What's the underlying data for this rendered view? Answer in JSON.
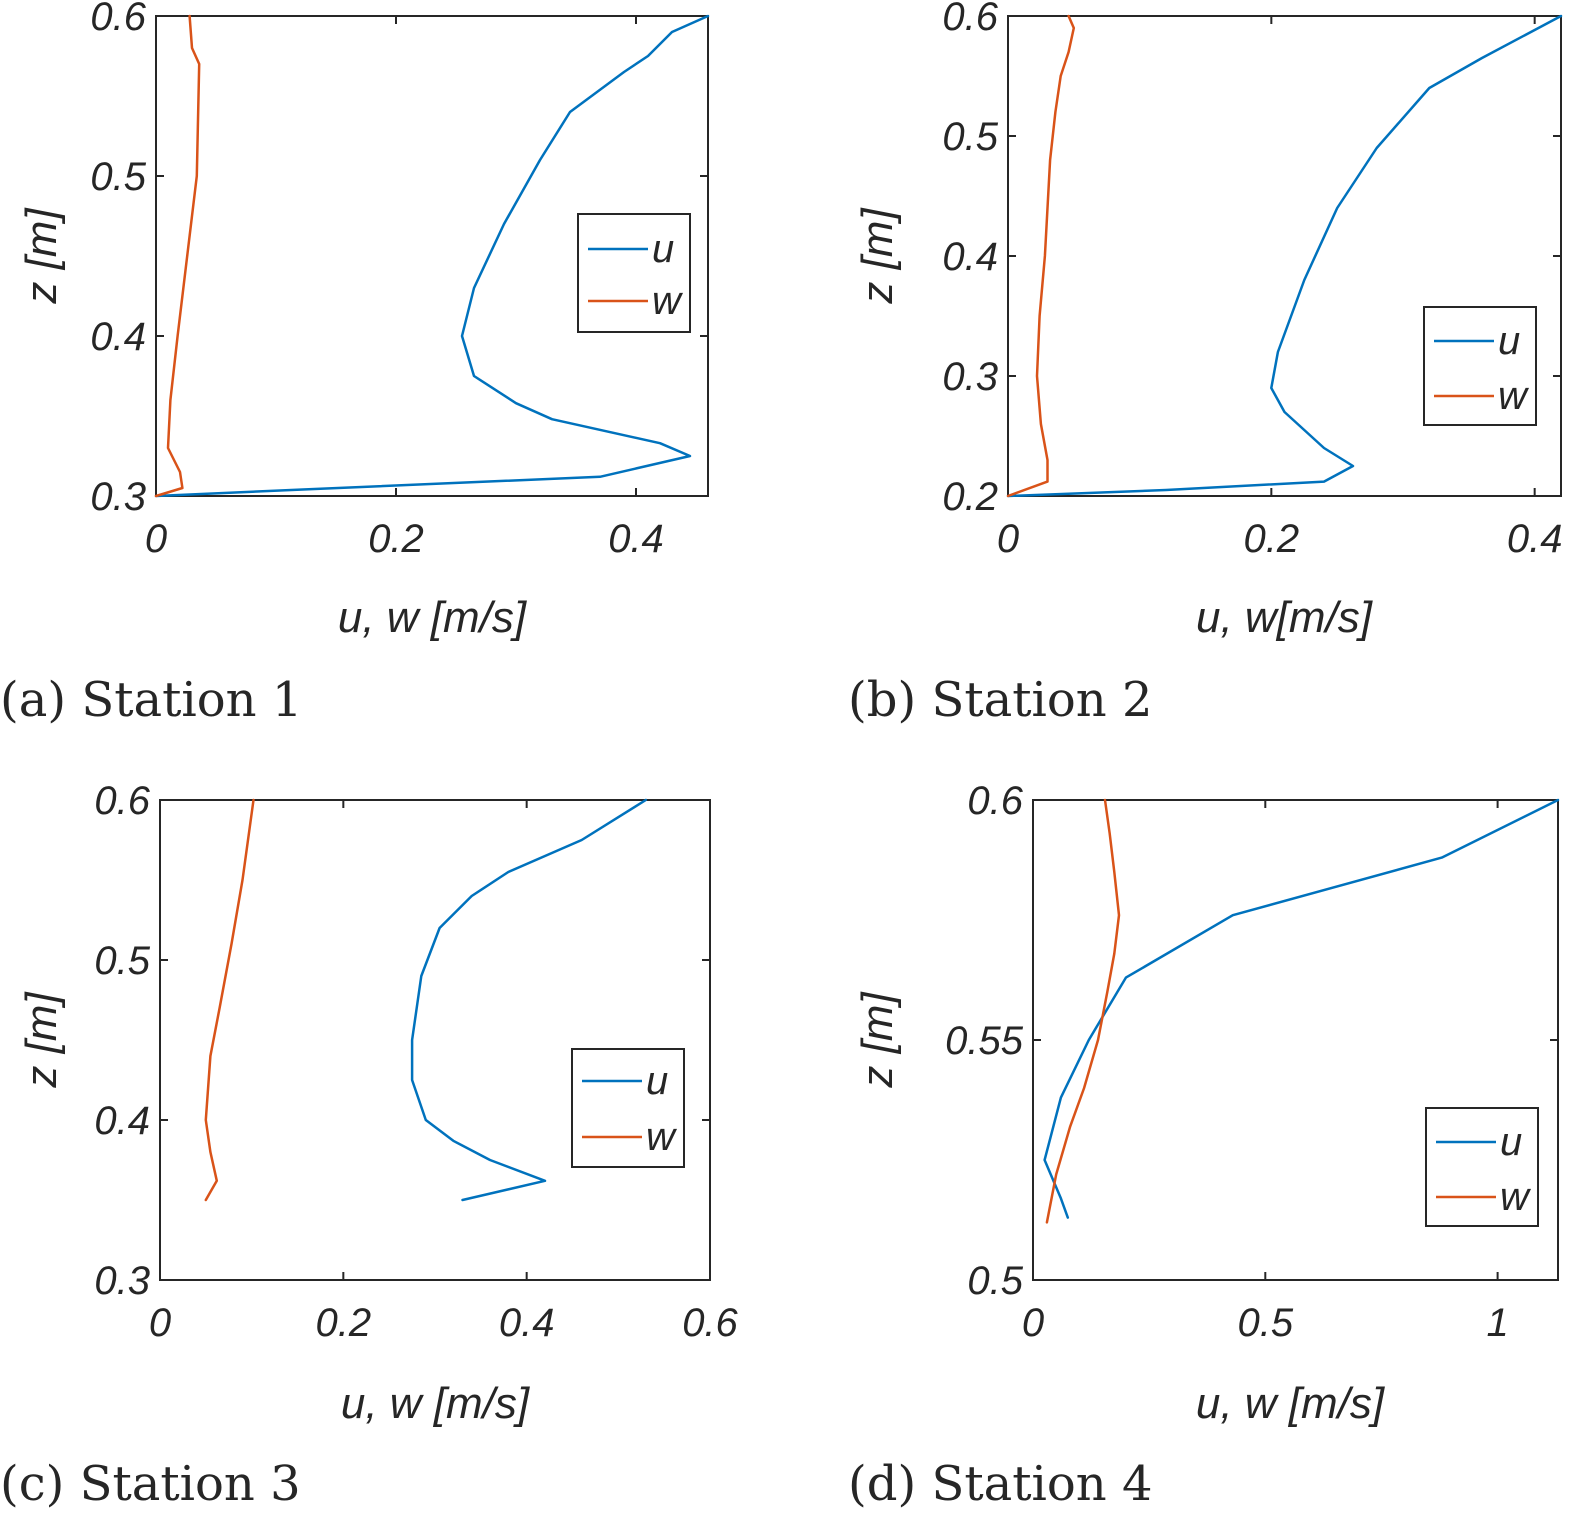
{
  "colors": {
    "u": "#0072BD",
    "w": "#D95319",
    "axes": "#262626"
  },
  "chart_data": [
    {
      "type": "line",
      "caption": "(a) Station 1",
      "xlabel": "u, w [m/s]",
      "ylabel": "z [m]",
      "xlim": [
        0,
        0.46
      ],
      "ylim": [
        0.3,
        0.6
      ],
      "xticks": [
        0,
        0.2,
        0.4
      ],
      "yticks": [
        0.3,
        0.4,
        0.5,
        0.6
      ],
      "xtick_labels": [
        "0",
        "0.2",
        "0.4"
      ],
      "ytick_labels": [
        "0.3",
        "0.4",
        "0.5",
        "0.6"
      ],
      "legend": {
        "placement": "center-right",
        "entries": [
          "u",
          "w"
        ]
      },
      "series": [
        {
          "name": "u",
          "color": "#0072BD",
          "x": [
            0.0,
            0.12,
            0.37,
            0.445,
            0.42,
            0.33,
            0.3,
            0.265,
            0.255,
            0.265,
            0.29,
            0.32,
            0.345,
            0.39,
            0.41,
            0.43,
            0.46
          ],
          "z": [
            0.3,
            0.304,
            0.312,
            0.325,
            0.333,
            0.348,
            0.358,
            0.375,
            0.4,
            0.43,
            0.47,
            0.51,
            0.54,
            0.565,
            0.575,
            0.59,
            0.6
          ]
        },
        {
          "name": "w",
          "color": "#D95319",
          "x": [
            0.0,
            0.022,
            0.02,
            0.01,
            0.012,
            0.018,
            0.026,
            0.034,
            0.036,
            0.03,
            0.028
          ],
          "z": [
            0.3,
            0.305,
            0.315,
            0.33,
            0.36,
            0.4,
            0.45,
            0.5,
            0.57,
            0.58,
            0.6
          ]
        }
      ]
    },
    {
      "type": "line",
      "caption": "(b) Station 2",
      "xlabel": "u, w[m/s]",
      "ylabel": "z [m]",
      "xlim": [
        0,
        0.42
      ],
      "ylim": [
        0.2,
        0.6
      ],
      "xticks": [
        0,
        0.2,
        0.4
      ],
      "yticks": [
        0.2,
        0.3,
        0.4,
        0.5,
        0.6
      ],
      "xtick_labels": [
        "0",
        "0.2",
        "0.4"
      ],
      "ytick_labels": [
        "0.2",
        "0.3",
        "0.4",
        "0.5",
        "0.6"
      ],
      "legend": {
        "placement": "center-right",
        "entries": [
          "u",
          "w"
        ]
      },
      "series": [
        {
          "name": "u",
          "color": "#0072BD",
          "x": [
            0.0,
            0.12,
            0.24,
            0.262,
            0.24,
            0.21,
            0.2,
            0.205,
            0.225,
            0.25,
            0.28,
            0.32,
            0.36,
            0.42
          ],
          "z": [
            0.2,
            0.205,
            0.212,
            0.225,
            0.24,
            0.27,
            0.29,
            0.32,
            0.38,
            0.44,
            0.49,
            0.54,
            0.565,
            0.6
          ]
        },
        {
          "name": "w",
          "color": "#D95319",
          "x": [
            0.0,
            0.03,
            0.03,
            0.025,
            0.022,
            0.024,
            0.028,
            0.03,
            0.032,
            0.036,
            0.04,
            0.046,
            0.05,
            0.046
          ],
          "z": [
            0.2,
            0.212,
            0.23,
            0.26,
            0.3,
            0.35,
            0.4,
            0.44,
            0.48,
            0.52,
            0.55,
            0.57,
            0.59,
            0.6
          ]
        }
      ]
    },
    {
      "type": "line",
      "caption": "(c) Station 3",
      "xlabel": "u, w [m/s]",
      "ylabel": "z [m]",
      "xlim": [
        0,
        0.6
      ],
      "ylim": [
        0.3,
        0.6
      ],
      "xticks": [
        0,
        0.2,
        0.4,
        0.6
      ],
      "yticks": [
        0.3,
        0.4,
        0.5,
        0.6
      ],
      "xtick_labels": [
        "0",
        "0.2",
        "0.4",
        "0.6"
      ],
      "ytick_labels": [
        "0.3",
        "0.4",
        "0.5",
        "0.6"
      ],
      "legend": {
        "placement": "bottom-right",
        "entries": [
          "u",
          "w"
        ]
      },
      "series": [
        {
          "name": "u",
          "color": "#0072BD",
          "x": [
            0.33,
            0.42,
            0.36,
            0.32,
            0.29,
            0.275,
            0.275,
            0.285,
            0.305,
            0.34,
            0.38,
            0.46,
            0.53
          ],
          "z": [
            0.35,
            0.362,
            0.375,
            0.387,
            0.4,
            0.425,
            0.45,
            0.49,
            0.52,
            0.54,
            0.555,
            0.575,
            0.6
          ]
        },
        {
          "name": "w",
          "color": "#D95319",
          "x": [
            0.05,
            0.062,
            0.055,
            0.05,
            0.055,
            0.065,
            0.078,
            0.09,
            0.102
          ],
          "z": [
            0.35,
            0.362,
            0.38,
            0.4,
            0.44,
            0.47,
            0.51,
            0.55,
            0.6
          ]
        }
      ]
    },
    {
      "type": "line",
      "caption": "(d) Station 4",
      "xlabel": "u, w [m/s]",
      "ylabel": "z [m]",
      "xlim": [
        0,
        1.13
      ],
      "ylim": [
        0.5,
        0.6
      ],
      "xticks": [
        0,
        0.5,
        1
      ],
      "yticks": [
        0.5,
        0.55,
        0.6
      ],
      "xtick_labels": [
        "0",
        "0.5",
        "1"
      ],
      "ytick_labels": [
        "0.5",
        "0.55",
        "0.6"
      ],
      "legend": {
        "placement": "bottom-right",
        "entries": [
          "u",
          "w"
        ]
      },
      "series": [
        {
          "name": "u",
          "color": "#0072BD",
          "x": [
            0.075,
            0.06,
            0.025,
            0.06,
            0.12,
            0.2,
            0.43,
            0.88,
            1.13
          ],
          "z": [
            0.513,
            0.517,
            0.525,
            0.538,
            0.55,
            0.563,
            0.576,
            0.588,
            0.6
          ]
        },
        {
          "name": "w",
          "color": "#D95319",
          "x": [
            0.03,
            0.05,
            0.08,
            0.11,
            0.14,
            0.16,
            0.175,
            0.185,
            0.175,
            0.165,
            0.155
          ],
          "z": [
            0.512,
            0.522,
            0.532,
            0.54,
            0.55,
            0.56,
            0.568,
            0.576,
            0.585,
            0.593,
            0.6
          ]
        }
      ]
    }
  ]
}
